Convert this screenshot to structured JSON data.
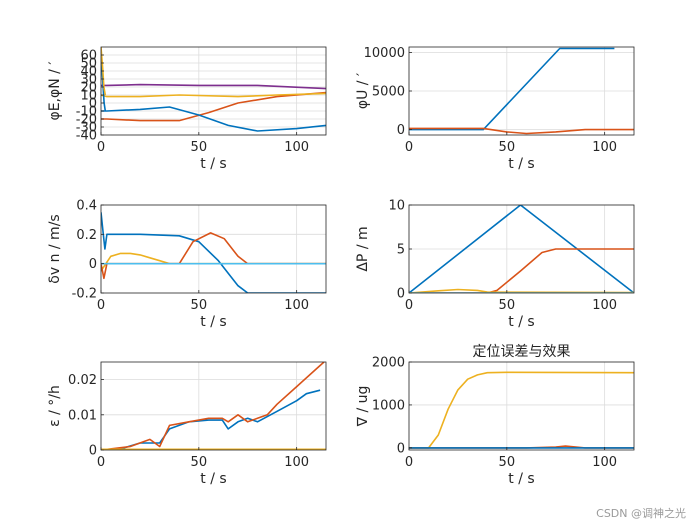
{
  "watermark": "CSDN @调神之光",
  "colors": {
    "blue": "#0072BD",
    "orange": "#D95319",
    "yellow": "#EDB120",
    "purple": "#7E2F8E",
    "cyan": "#4DBEEE"
  },
  "chart_data": [
    {
      "type": "line",
      "title": "",
      "xlabel": "t / s",
      "ylabel": "φE,φN / ′",
      "xlim": [
        0,
        115
      ],
      "ylim": [
        -40,
        70
      ],
      "xticks": [
        0,
        50,
        100
      ],
      "yticks": [
        -40,
        -30,
        -20,
        -10,
        0,
        10,
        20,
        30,
        40,
        50,
        60
      ],
      "series": [
        {
          "name": "phiE-purple",
          "color": "#7E2F8E",
          "x": [
            0,
            3,
            20,
            50,
            80,
            115
          ],
          "y": [
            22,
            22,
            23,
            22,
            22,
            18
          ]
        },
        {
          "name": "phiN-orange",
          "color": "#D95319",
          "x": [
            0,
            3,
            20,
            40,
            55,
            70,
            90,
            115
          ],
          "y": [
            -20,
            -20,
            -22,
            -22,
            -12,
            0,
            8,
            13
          ]
        },
        {
          "name": "phiE-yellow",
          "color": "#EDB120",
          "x": [
            0,
            3,
            20,
            40,
            70,
            90,
            115
          ],
          "y": [
            10,
            8,
            8,
            10,
            8,
            10,
            12
          ]
        },
        {
          "name": "phiN-blue",
          "color": "#0072BD",
          "x": [
            0,
            3,
            20,
            35,
            50,
            65,
            80,
            100,
            115
          ],
          "y": [
            -10,
            -10,
            -8,
            -5,
            -15,
            -28,
            -35,
            -32,
            -28
          ]
        },
        {
          "name": "phiE-blue-initial-spike",
          "color": "#0072BD",
          "x": [
            0,
            0.8,
            1.6,
            2.2
          ],
          "y": [
            60,
            30,
            0,
            -10
          ]
        },
        {
          "name": "phiN-yellow-initial-spike",
          "color": "#EDB120",
          "x": [
            0,
            0.8,
            1.5,
            2.2
          ],
          "y": [
            70,
            45,
            20,
            10
          ]
        }
      ]
    },
    {
      "type": "line",
      "title": "",
      "xlabel": "t / s",
      "ylabel": "φU / ′",
      "xlim": [
        0,
        115
      ],
      "ylim": [
        -700,
        10700
      ],
      "xticks": [
        0,
        50,
        100
      ],
      "yticks": [
        0,
        5000,
        10000
      ],
      "series": [
        {
          "name": "phiU-blue",
          "color": "#0072BD",
          "x": [
            0,
            38,
            77,
            105
          ],
          "y": [
            0,
            0,
            10500,
            10500
          ]
        },
        {
          "name": "phiU-orange",
          "color": "#D95319",
          "x": [
            0,
            38,
            50,
            60,
            75,
            90,
            115
          ],
          "y": [
            150,
            150,
            -300,
            -500,
            -300,
            0,
            0
          ]
        }
      ]
    },
    {
      "type": "line",
      "title": "",
      "xlabel": "t / s",
      "ylabel": "δv n / m/s",
      "xlim": [
        0,
        115
      ],
      "ylim": [
        -0.2,
        0.4
      ],
      "xticks": [
        0,
        50,
        100
      ],
      "yticks": [
        -0.2,
        0,
        0.2,
        0.4
      ],
      "series": [
        {
          "name": "dvE-blue",
          "color": "#0072BD",
          "x": [
            0,
            1,
            2,
            3,
            5,
            20,
            40,
            50,
            60,
            70,
            75,
            80,
            115
          ],
          "y": [
            0.35,
            0.22,
            0.1,
            0.2,
            0.2,
            0.2,
            0.19,
            0.15,
            0.02,
            -0.15,
            -0.2,
            -0.2,
            -0.2
          ]
        },
        {
          "name": "dvN-yellow",
          "color": "#EDB120",
          "x": [
            0,
            5,
            10,
            15,
            20,
            25,
            30,
            35,
            38,
            115
          ],
          "y": [
            -0.05,
            0.05,
            0.07,
            0.07,
            0.06,
            0.04,
            0.02,
            0.0,
            0.0,
            0.0
          ]
        },
        {
          "name": "dvU-orange",
          "color": "#D95319",
          "x": [
            0,
            1.5,
            3,
            40,
            47,
            56,
            63,
            70,
            75,
            115
          ],
          "y": [
            0.0,
            -0.1,
            0.0,
            0.0,
            0.15,
            0.21,
            0.17,
            0.05,
            0.0,
            0.0
          ]
        },
        {
          "name": "dv-cyan",
          "color": "#4DBEEE",
          "x": [
            0,
            115
          ],
          "y": [
            0.0,
            0.0
          ]
        }
      ]
    },
    {
      "type": "line",
      "title": "",
      "xlabel": "t / s",
      "ylabel": "ΔP / m",
      "xlim": [
        0,
        115
      ],
      "ylim": [
        0,
        10
      ],
      "xticks": [
        0,
        50,
        100
      ],
      "yticks": [
        0,
        5,
        10
      ],
      "series": [
        {
          "name": "dP-blue",
          "color": "#0072BD",
          "x": [
            0,
            57,
            115
          ],
          "y": [
            0,
            10,
            0
          ]
        },
        {
          "name": "dP-orange",
          "color": "#D95319",
          "x": [
            0,
            40,
            45,
            57,
            68,
            75,
            115
          ],
          "y": [
            0,
            0,
            0.3,
            2.5,
            4.6,
            5,
            5
          ]
        },
        {
          "name": "dP-yellow",
          "color": "#EDB120",
          "x": [
            0,
            15,
            25,
            35,
            40,
            115
          ],
          "y": [
            0,
            0.25,
            0.4,
            0.3,
            0.1,
            0.05
          ]
        },
        {
          "name": "dP-cyan",
          "color": "#4DBEEE",
          "x": [
            0,
            115
          ],
          "y": [
            0,
            0
          ]
        }
      ]
    },
    {
      "type": "line",
      "title": "",
      "xlabel": "t / s",
      "ylabel": "ε / °/h",
      "xlim": [
        0,
        115
      ],
      "ylim": [
        0,
        0.025
      ],
      "xticks": [
        0,
        50,
        100
      ],
      "yticks": [
        0,
        0.01,
        0.02
      ],
      "yticklabels": [
        "0",
        "0.01",
        "0.02"
      ],
      "series": [
        {
          "name": "eps-blue",
          "color": "#0072BD",
          "x": [
            0,
            10,
            20,
            30,
            35,
            45,
            55,
            62,
            65,
            70,
            75,
            80,
            90,
            100,
            105,
            112
          ],
          "y": [
            0,
            0.0003,
            0.002,
            0.002,
            0.006,
            0.008,
            0.0085,
            0.0085,
            0.006,
            0.008,
            0.009,
            0.008,
            0.011,
            0.014,
            0.016,
            0.017
          ]
        },
        {
          "name": "eps-orange",
          "color": "#D95319",
          "x": [
            0,
            15,
            25,
            30,
            35,
            45,
            55,
            62,
            65,
            70,
            75,
            80,
            85,
            90,
            100,
            110,
            114
          ],
          "y": [
            0,
            0.001,
            0.003,
            0.001,
            0.007,
            0.008,
            0.009,
            0.009,
            0.008,
            0.01,
            0.008,
            0.009,
            0.01,
            0.013,
            0.018,
            0.023,
            0.025
          ]
        },
        {
          "name": "eps-yellow",
          "color": "#EDB120",
          "x": [
            0,
            115
          ],
          "y": [
            0.0002,
            0.0002
          ]
        }
      ]
    },
    {
      "type": "line",
      "title": "定位误差与效果",
      "xlabel": "t / s",
      "ylabel": "∇ / ug",
      "xlim": [
        0,
        115
      ],
      "ylim": [
        -50,
        2000
      ],
      "xticks": [
        0,
        50,
        100
      ],
      "yticks": [
        0,
        1000,
        2000
      ],
      "series": [
        {
          "name": "bias-yellow",
          "color": "#EDB120",
          "x": [
            0,
            10,
            15,
            20,
            25,
            30,
            35,
            40,
            50,
            115
          ],
          "y": [
            0,
            0,
            300,
            900,
            1350,
            1600,
            1700,
            1750,
            1760,
            1750
          ]
        },
        {
          "name": "bias-orange",
          "color": "#D95319",
          "x": [
            0,
            60,
            75,
            80,
            90,
            115
          ],
          "y": [
            0,
            0,
            20,
            40,
            0,
            0
          ]
        },
        {
          "name": "bias-blue",
          "color": "#0072BD",
          "x": [
            0,
            115
          ],
          "y": [
            0,
            0
          ]
        }
      ]
    }
  ]
}
